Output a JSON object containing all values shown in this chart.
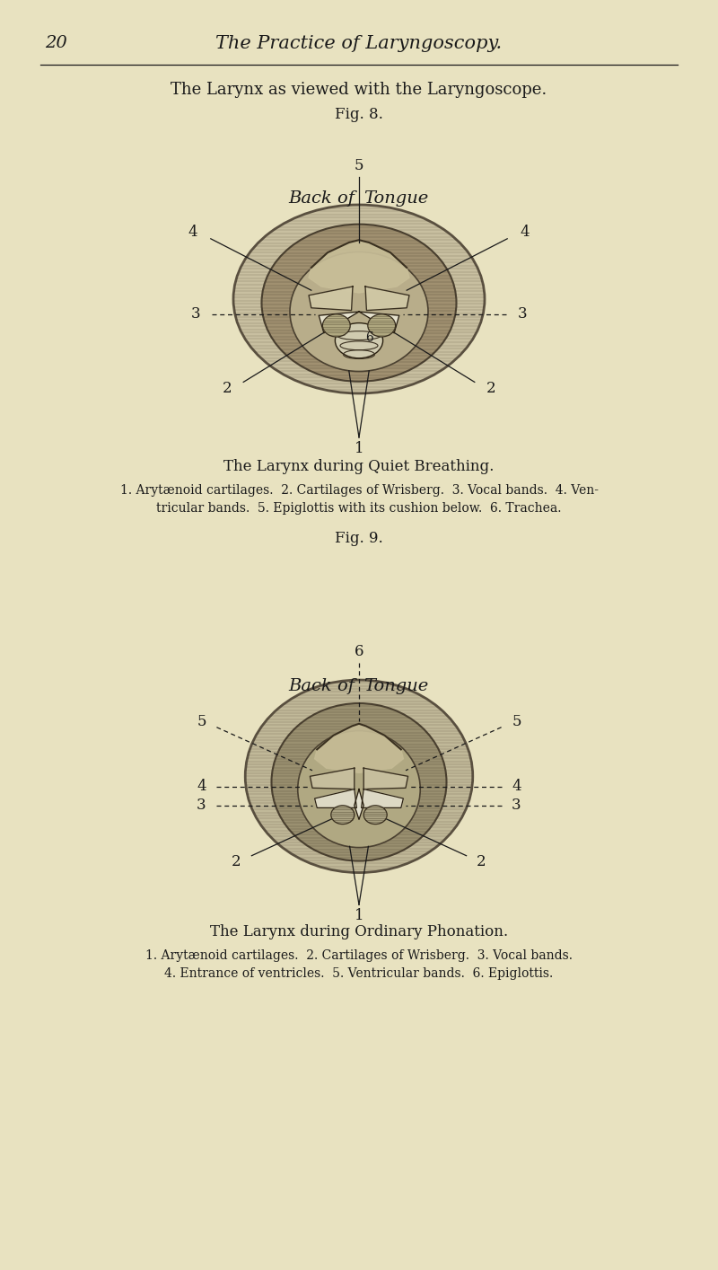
{
  "background_color": "#e8e2c0",
  "text_color": "#1a1a1a",
  "page_number": "20",
  "page_header": "The Practice of Laryngoscopy.",
  "main_title": "The Larynx as viewed with the Laryngoscope.",
  "fig8_label": "Fig. 8.",
  "fig8_title": "The Larynx during Quiet Breathing.",
  "fig8_caption_line1": "1. Arytænoid cartilages.  2. Cartilages of Wrisberg.  3. Vocal bands.  4. Ven-",
  "fig8_caption_line2": "tricular bands.  5. Epiglottis with its cushion below.  6. Trachea.",
  "fig9_label": "Fig. 9.",
  "fig9_title": "The Larynx during Ordinary Phonation.",
  "fig9_caption_line1": "1. Arytænoid cartilages.  2. Cartilages of Wrisberg.  3. Vocal bands.",
  "fig9_caption_line2": "4. Entrance of ventricles.  5. Ventricular bands.  6. Epiglottis.",
  "back_of_tongue_italic": "Back of",
  "tongue_italic": "Tongue"
}
